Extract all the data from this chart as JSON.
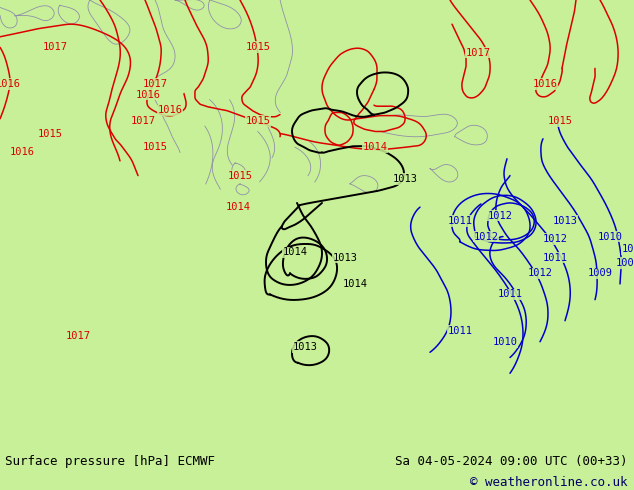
{
  "title_left": "Surface pressure [hPa] ECMWF",
  "title_right": "Sa 04-05-2024 09:00 UTC (00+33)",
  "copyright": "© weatheronline.co.uk",
  "background_color": "#c8f098",
  "footer_bg": "#d0d0d0",
  "isobar_red": "#dd0000",
  "isobar_black": "#000000",
  "isobar_blue": "#0000cc",
  "coast_color": "#9090a8",
  "label_fontsize": 7.5,
  "footer_fontsize": 9,
  "figsize": [
    6.34,
    4.9
  ],
  "dpi": 100
}
